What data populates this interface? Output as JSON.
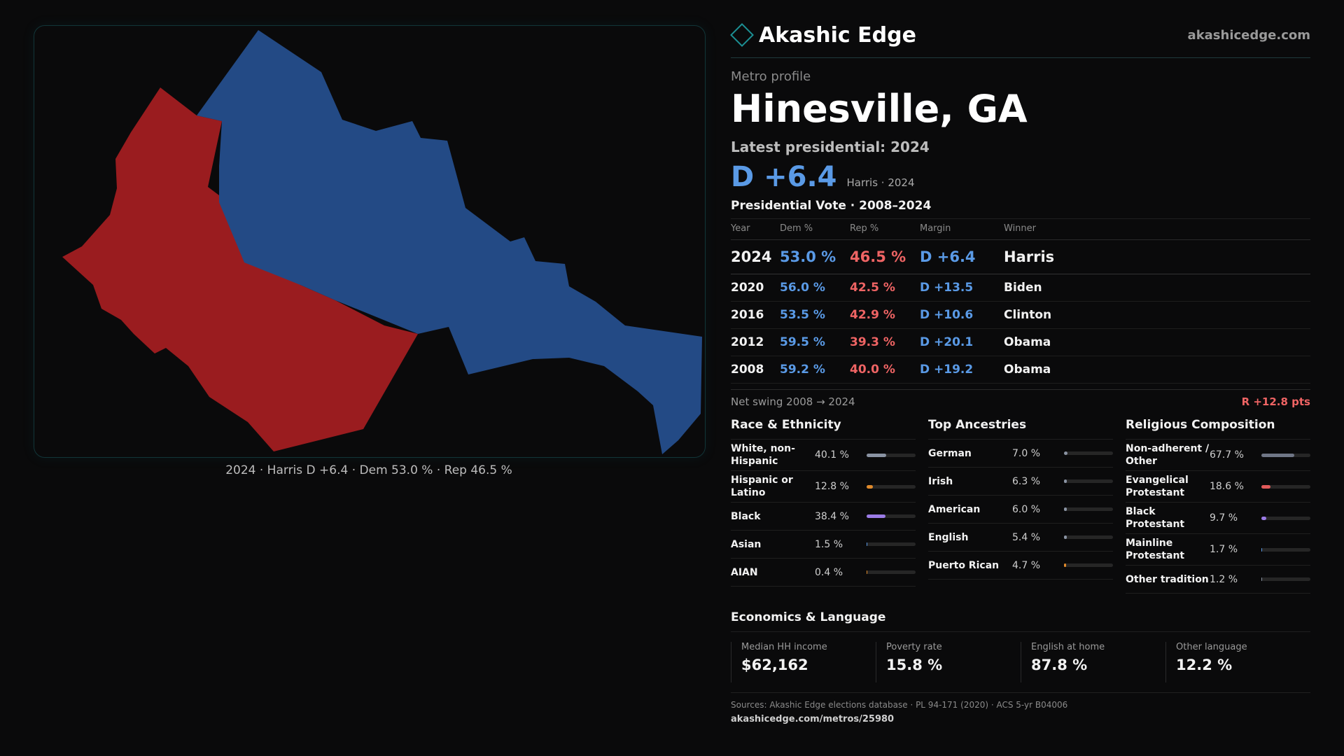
{
  "brand": {
    "name": "Akashic Edge",
    "site": "akashicedge.com"
  },
  "profile": {
    "kicker": "Metro profile",
    "city": "Hinesville, GA",
    "latest_label": "Latest presidential: 2024",
    "margin": "D +6.4",
    "margin_sub": "Harris · 2024"
  },
  "map": {
    "caption": "2024 · Harris D +6.4 · Dem 53.0 % · Rep 46.5 %",
    "colors": {
      "dem": "#234a85",
      "rep": "#9a1c1f"
    }
  },
  "vote_table": {
    "title": "Presidential Vote · 2008–2024",
    "headers": {
      "year": "Year",
      "dem": "Dem %",
      "rep": "Rep %",
      "margin": "Margin",
      "winner": "Winner"
    },
    "rows": [
      {
        "year": "2024",
        "dem": "53.0 %",
        "rep": "46.5 %",
        "margin": "D +6.4",
        "winner": "Harris"
      },
      {
        "year": "2020",
        "dem": "56.0 %",
        "rep": "42.5 %",
        "margin": "D +13.5",
        "winner": "Biden"
      },
      {
        "year": "2016",
        "dem": "53.5 %",
        "rep": "42.9 %",
        "margin": "D +10.6",
        "winner": "Clinton"
      },
      {
        "year": "2012",
        "dem": "59.5 %",
        "rep": "39.3 %",
        "margin": "D +20.1",
        "winner": "Obama"
      },
      {
        "year": "2008",
        "dem": "59.2 %",
        "rep": "40.0 %",
        "margin": "D +19.2",
        "winner": "Obama"
      }
    ],
    "swing_label": "Net swing 2008 → 2024",
    "swing_value": "R +12.8 pts"
  },
  "race": {
    "title": "Race & Ethnicity",
    "items": [
      {
        "label": "White, non-Hispanic",
        "value": "40.1 %",
        "pct": 40.1,
        "color": "#8a93a3"
      },
      {
        "label": "Hispanic or Latino",
        "value": "12.8 %",
        "pct": 12.8,
        "color": "#e08a2b"
      },
      {
        "label": "Black",
        "value": "38.4 %",
        "pct": 38.4,
        "color": "#9b7be6"
      },
      {
        "label": "Asian",
        "value": "1.5 %",
        "pct": 1.5,
        "color": "#5a9ae6"
      },
      {
        "label": "AIAN",
        "value": "0.4 %",
        "pct": 0.4,
        "color": "#e08a2b"
      }
    ]
  },
  "ancestry": {
    "title": "Top Ancestries",
    "items": [
      {
        "label": "German",
        "value": "7.0 %",
        "pct": 7.0,
        "color": "#8a93a3"
      },
      {
        "label": "Irish",
        "value": "6.3 %",
        "pct": 6.3,
        "color": "#8a93a3"
      },
      {
        "label": "American",
        "value": "6.0 %",
        "pct": 6.0,
        "color": "#8a93a3"
      },
      {
        "label": "English",
        "value": "5.4 %",
        "pct": 5.4,
        "color": "#8a93a3"
      },
      {
        "label": "Puerto Rican",
        "value": "4.7 %",
        "pct": 4.7,
        "color": "#e08a2b"
      }
    ]
  },
  "religion": {
    "title": "Religious Composition",
    "items": [
      {
        "label": "Non-adherent / Other",
        "value": "67.7 %",
        "pct": 67.7,
        "color": "#6f7686"
      },
      {
        "label": "Evangelical Protestant",
        "value": "18.6 %",
        "pct": 18.6,
        "color": "#e05a5a"
      },
      {
        "label": "Black Protestant",
        "value": "9.7 %",
        "pct": 9.7,
        "color": "#9b7be6"
      },
      {
        "label": "Mainline Protestant",
        "value": "1.7 %",
        "pct": 1.7,
        "color": "#5a9ae6"
      },
      {
        "label": "Other tradition",
        "value": "1.2 %",
        "pct": 1.2,
        "color": "#8a93a3"
      }
    ]
  },
  "economics": {
    "title": "Economics & Language",
    "items": [
      {
        "label": "Median HH income",
        "value": "$62,162"
      },
      {
        "label": "Poverty rate",
        "value": "15.8 %"
      },
      {
        "label": "English at home",
        "value": "87.8 %"
      },
      {
        "label": "Other language",
        "value": "12.2 %"
      }
    ]
  },
  "sources": {
    "text": "Sources: Akashic Edge elections database · PL 94-171 (2020) · ACS 5-yr B04006",
    "link": "akashicedge.com/metros/25980"
  }
}
